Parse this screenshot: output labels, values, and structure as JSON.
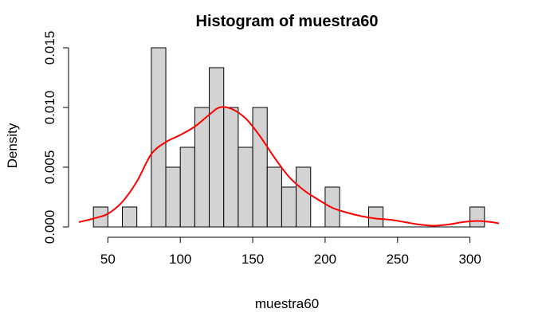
{
  "chart_data": {
    "type": "bar",
    "title": "Histogram of muestra60",
    "xlabel": "muestra60",
    "ylabel": "Density",
    "xlim": [
      30,
      320
    ],
    "ylim": [
      0,
      0.015
    ],
    "x_ticks": [
      50,
      100,
      150,
      200,
      250,
      300
    ],
    "x_tick_labels": [
      "50",
      "100",
      "150",
      "200",
      "250",
      "300"
    ],
    "y_ticks": [
      0,
      0.005,
      0.01,
      0.015
    ],
    "y_tick_labels": [
      "0.000",
      "0.005",
      "0.010",
      "0.015"
    ],
    "bar_color": "#d3d3d3",
    "bar_edge_color": "#000000",
    "bins": [
      {
        "x0": 40,
        "x1": 50,
        "density": 0.001667
      },
      {
        "x0": 50,
        "x1": 60,
        "density": 0
      },
      {
        "x0": 60,
        "x1": 70,
        "density": 0.001667
      },
      {
        "x0": 70,
        "x1": 80,
        "density": 0
      },
      {
        "x0": 80,
        "x1": 90,
        "density": 0.015
      },
      {
        "x0": 90,
        "x1": 100,
        "density": 0.005
      },
      {
        "x0": 100,
        "x1": 110,
        "density": 0.006667
      },
      {
        "x0": 110,
        "x1": 120,
        "density": 0.01
      },
      {
        "x0": 120,
        "x1": 130,
        "density": 0.013333
      },
      {
        "x0": 130,
        "x1": 140,
        "density": 0.01
      },
      {
        "x0": 140,
        "x1": 150,
        "density": 0.006667
      },
      {
        "x0": 150,
        "x1": 160,
        "density": 0.01
      },
      {
        "x0": 160,
        "x1": 170,
        "density": 0.005
      },
      {
        "x0": 170,
        "x1": 180,
        "density": 0.003333
      },
      {
        "x0": 180,
        "x1": 190,
        "density": 0.005
      },
      {
        "x0": 190,
        "x1": 200,
        "density": 0
      },
      {
        "x0": 200,
        "x1": 210,
        "density": 0.003333
      },
      {
        "x0": 210,
        "x1": 220,
        "density": 0
      },
      {
        "x0": 220,
        "x1": 230,
        "density": 0
      },
      {
        "x0": 230,
        "x1": 240,
        "density": 0.001667
      },
      {
        "x0": 240,
        "x1": 250,
        "density": 0
      },
      {
        "x0": 250,
        "x1": 260,
        "density": 0
      },
      {
        "x0": 260,
        "x1": 270,
        "density": 0
      },
      {
        "x0": 270,
        "x1": 280,
        "density": 0
      },
      {
        "x0": 280,
        "x1": 290,
        "density": 0
      },
      {
        "x0": 290,
        "x1": 300,
        "density": 0
      },
      {
        "x0": 300,
        "x1": 310,
        "density": 0.001667
      }
    ],
    "density_curve": {
      "color": "#ff0000",
      "x": [
        30,
        40,
        50,
        60,
        70,
        80,
        90,
        100,
        110,
        120,
        127,
        135,
        145,
        155,
        165,
        175,
        185,
        195,
        205,
        215,
        225,
        235,
        245,
        255,
        265,
        275,
        285,
        295,
        305,
        315,
        320
      ],
      "y": [
        0.0004,
        0.0007,
        0.0011,
        0.0021,
        0.0038,
        0.0061,
        0.0071,
        0.0077,
        0.0084,
        0.0094,
        0.01,
        0.0099,
        0.0091,
        0.0076,
        0.0058,
        0.0042,
        0.0031,
        0.0023,
        0.0016,
        0.0012,
        0.0009,
        0.0007,
        0.0006,
        0.0004,
        0.0002,
        0.0001,
        0.0002,
        0.0004,
        0.0005,
        0.0004,
        0.0003
      ]
    }
  }
}
